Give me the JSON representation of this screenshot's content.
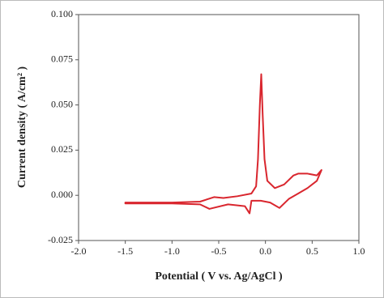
{
  "chart_data": {
    "type": "line",
    "x_label": "Potential ( V vs. Ag/AgCl )",
    "y_label": "Current density ( A/cm² )",
    "xlim": [
      -2.0,
      1.0
    ],
    "xticks": [
      {
        "value": -2.0,
        "label": "-2.0"
      },
      -1.5,
      {
        "value": -1.0,
        "label": "-1.0"
      },
      -0.5,
      {
        "value": 0.0,
        "label": "0.0"
      },
      0.5,
      {
        "value": 1.0,
        "label": "1.0"
      }
    ],
    "ylim": [
      -0.025,
      0.1
    ],
    "yticks": [
      -0.025,
      {
        "value": 0.0,
        "label": "0.000"
      },
      0.025,
      {
        "value": 0.05,
        "label": "0.050"
      },
      0.075,
      {
        "value": 0.1,
        "label": "0.100"
      }
    ],
    "grid": false,
    "series": [
      {
        "color": "#d9262e",
        "x": [
          -1.5,
          -1.0,
          -0.7,
          -0.55,
          -0.45,
          -0.3,
          -0.15,
          -0.1,
          -0.08,
          -0.06,
          -0.045,
          -0.03,
          -0.01,
          0.02,
          0.1,
          0.2,
          0.3,
          0.35,
          0.45,
          0.55,
          0.6,
          0.55,
          0.45,
          0.35,
          0.25,
          0.15,
          0.05,
          -0.05,
          -0.15,
          -0.17,
          -0.22,
          -0.4,
          -0.6,
          -0.7,
          -1.0,
          -1.5
        ],
        "values": [
          -0.004,
          -0.004,
          -0.0035,
          -0.001,
          -0.0015,
          -0.0005,
          0.001,
          0.005,
          0.02,
          0.05,
          0.067,
          0.045,
          0.02,
          0.008,
          0.004,
          0.006,
          0.011,
          0.012,
          0.012,
          0.011,
          0.014,
          0.008,
          0.004,
          0.001,
          -0.002,
          -0.007,
          -0.004,
          -0.003,
          -0.003,
          -0.01,
          -0.006,
          -0.005,
          -0.0075,
          -0.005,
          -0.0045,
          -0.0045
        ]
      }
    ]
  }
}
